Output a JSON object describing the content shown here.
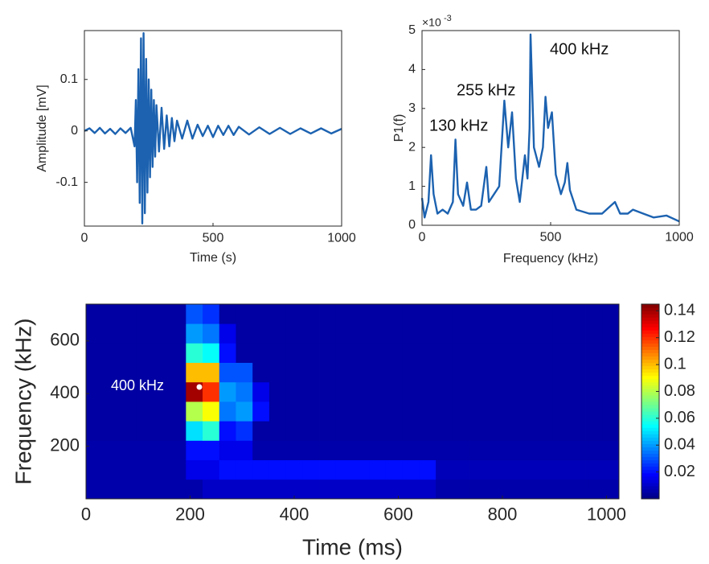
{
  "chart_data": [
    {
      "type": "line",
      "x_label": "Time (s)",
      "y_label": "Amplitude [mV]",
      "xlim": [
        0,
        1000
      ],
      "ylim": [
        -0.185,
        0.195
      ],
      "xticks": [
        0,
        500,
        1000
      ],
      "yticks": [
        -0.1,
        0,
        0.1
      ],
      "series": [
        {
          "color": "#1c62b0",
          "x": [
            0,
            20,
            40,
            60,
            80,
            100,
            120,
            140,
            160,
            180,
            195,
            200,
            205,
            210,
            215,
            220,
            225,
            230,
            235,
            240,
            245,
            250,
            255,
            260,
            265,
            270,
            275,
            280,
            290,
            300,
            310,
            320,
            330,
            340,
            350,
            360,
            380,
            400,
            420,
            440,
            460,
            480,
            500,
            520,
            540,
            560,
            580,
            600,
            640,
            680,
            720,
            760,
            800,
            840,
            880,
            920,
            960,
            1000
          ],
          "values": [
            0,
            0.005,
            -0.004,
            0.006,
            -0.005,
            0.004,
            -0.006,
            0.005,
            -0.004,
            0.006,
            -0.03,
            0.06,
            -0.1,
            0.12,
            -0.14,
            0.18,
            -0.18,
            0.19,
            -0.16,
            0.14,
            -0.12,
            0.1,
            -0.09,
            0.08,
            -0.07,
            0.06,
            -0.05,
            0.05,
            -0.04,
            0.045,
            -0.035,
            0.03,
            -0.03,
            0.025,
            -0.02,
            0.02,
            -0.015,
            0.02,
            -0.015,
            0.012,
            -0.01,
            0.01,
            -0.012,
            0.01,
            -0.008,
            0.01,
            -0.008,
            0.008,
            -0.007,
            0.007,
            -0.006,
            0.006,
            -0.006,
            0.005,
            -0.005,
            0.005,
            -0.005,
            0.004
          ]
        }
      ]
    },
    {
      "type": "line",
      "x_label": "Frequency (kHz)",
      "y_label": "P1(f)",
      "y_multiplier": {
        "base": "×10",
        "power": "-3"
      },
      "xlim": [
        0,
        1000
      ],
      "ylim": [
        0,
        5
      ],
      "xticks": [
        0,
        500,
        1000
      ],
      "yticks": [
        0,
        1,
        2,
        3,
        4,
        5
      ],
      "annotations": [
        "130 kHz",
        "255 kHz",
        "400 kHz"
      ],
      "series": [
        {
          "color": "#1c62b0",
          "x": [
            0,
            10,
            25,
            35,
            45,
            60,
            80,
            100,
            120,
            130,
            140,
            160,
            175,
            190,
            210,
            230,
            250,
            260,
            280,
            300,
            320,
            335,
            350,
            365,
            380,
            400,
            410,
            418,
            422,
            435,
            455,
            470,
            480,
            490,
            505,
            520,
            540,
            555,
            565,
            575,
            600,
            650,
            700,
            750,
            770,
            800,
            820,
            860,
            900,
            950,
            1000
          ],
          "values": [
            0.7,
            0.2,
            0.6,
            1.8,
            0.8,
            0.3,
            0.4,
            0.3,
            0.6,
            2.2,
            0.8,
            0.5,
            1.1,
            0.4,
            0.4,
            0.5,
            1.5,
            0.6,
            0.8,
            1.0,
            3.2,
            2.0,
            2.9,
            1.2,
            0.6,
            1.8,
            1.2,
            2.5,
            4.9,
            2.0,
            1.5,
            2.0,
            3.3,
            2.5,
            2.9,
            1.3,
            0.8,
            1.1,
            1.6,
            0.9,
            0.4,
            0.3,
            0.3,
            0.6,
            0.3,
            0.3,
            0.4,
            0.3,
            0.2,
            0.25,
            0.1
          ]
        }
      ]
    },
    {
      "type": "heatmap",
      "x_label": "Time (ms)",
      "y_label": "Frequency (kHz)",
      "colormap": "jet",
      "xlim": [
        0,
        1024
      ],
      "ylim": [
        0,
        740
      ],
      "xticks": [
        0,
        200,
        400,
        600,
        800,
        1000
      ],
      "yticks": [
        200,
        400,
        600
      ],
      "clim": [
        0,
        0.145
      ],
      "cticks": [
        0.02,
        0.04,
        0.06,
        0.08,
        0.1,
        0.12,
        0.14
      ],
      "annotations": [
        "400 kHz"
      ],
      "x_edges": [
        0,
        32,
        64,
        96,
        128,
        160,
        192,
        224,
        256,
        288,
        320,
        352,
        384,
        416,
        448,
        480,
        512,
        544,
        576,
        608,
        640,
        672,
        704,
        736,
        768,
        800,
        832,
        864,
        896,
        928,
        960,
        992,
        1024
      ],
      "y_edges": [
        0,
        74,
        148,
        222,
        296,
        370,
        444,
        518,
        592,
        666,
        740
      ],
      "values": [
        [
          0.006,
          0.006,
          0.006,
          0.006,
          0.006,
          0.006,
          0.006,
          0.01,
          0.01,
          0.01,
          0.01,
          0.01,
          0.01,
          0.01,
          0.01,
          0.01,
          0.01,
          0.01,
          0.01,
          0.01,
          0.01,
          0.006,
          0.006,
          0.006,
          0.006,
          0.006,
          0.006,
          0.006,
          0.006,
          0.006,
          0.006,
          0.006
        ],
        [
          0.006,
          0.006,
          0.006,
          0.006,
          0.006,
          0.006,
          0.015,
          0.015,
          0.02,
          0.02,
          0.02,
          0.02,
          0.02,
          0.02,
          0.02,
          0.02,
          0.02,
          0.02,
          0.02,
          0.02,
          0.02,
          0.008,
          0.008,
          0.008,
          0.008,
          0.008,
          0.008,
          0.008,
          0.008,
          0.008,
          0.008,
          0.008
        ],
        [
          0.006,
          0.006,
          0.006,
          0.006,
          0.006,
          0.006,
          0.02,
          0.02,
          0.015,
          0.015,
          0.006,
          0.006,
          0.006,
          0.006,
          0.006,
          0.006,
          0.006,
          0.006,
          0.006,
          0.006,
          0.006,
          0.006,
          0.006,
          0.006,
          0.006,
          0.006,
          0.006,
          0.006,
          0.006,
          0.006,
          0.006,
          0.006
        ],
        [
          0.005,
          0.005,
          0.005,
          0.005,
          0.005,
          0.005,
          0.05,
          0.06,
          0.02,
          0.025,
          0.005,
          0.005,
          0.005,
          0.005,
          0.005,
          0.005,
          0.005,
          0.005,
          0.005,
          0.005,
          0.005,
          0.005,
          0.005,
          0.005,
          0.005,
          0.005,
          0.005,
          0.005,
          0.005,
          0.005,
          0.005,
          0.005
        ],
        [
          0.005,
          0.005,
          0.005,
          0.005,
          0.005,
          0.005,
          0.08,
          0.09,
          0.035,
          0.04,
          0.02,
          0.005,
          0.005,
          0.005,
          0.005,
          0.005,
          0.005,
          0.005,
          0.005,
          0.005,
          0.005,
          0.005,
          0.005,
          0.005,
          0.005,
          0.005,
          0.005,
          0.005,
          0.005,
          0.005,
          0.005,
          0.005
        ],
        [
          0.005,
          0.005,
          0.005,
          0.005,
          0.005,
          0.005,
          0.14,
          0.12,
          0.04,
          0.035,
          0.015,
          0.005,
          0.005,
          0.005,
          0.005,
          0.005,
          0.005,
          0.005,
          0.005,
          0.005,
          0.005,
          0.005,
          0.005,
          0.005,
          0.005,
          0.005,
          0.005,
          0.005,
          0.005,
          0.005,
          0.005,
          0.005
        ],
        [
          0.005,
          0.005,
          0.005,
          0.005,
          0.005,
          0.005,
          0.1,
          0.1,
          0.03,
          0.03,
          0.005,
          0.005,
          0.005,
          0.005,
          0.005,
          0.005,
          0.005,
          0.005,
          0.005,
          0.005,
          0.005,
          0.005,
          0.005,
          0.005,
          0.005,
          0.005,
          0.005,
          0.005,
          0.005,
          0.005,
          0.005,
          0.005
        ],
        [
          0.005,
          0.005,
          0.005,
          0.005,
          0.005,
          0.005,
          0.06,
          0.055,
          0.02,
          0.005,
          0.005,
          0.005,
          0.005,
          0.005,
          0.005,
          0.005,
          0.005,
          0.005,
          0.005,
          0.005,
          0.005,
          0.005,
          0.005,
          0.005,
          0.005,
          0.005,
          0.005,
          0.005,
          0.005,
          0.005,
          0.005,
          0.005
        ],
        [
          0.005,
          0.005,
          0.005,
          0.005,
          0.005,
          0.005,
          0.04,
          0.035,
          0.015,
          0.005,
          0.005,
          0.005,
          0.005,
          0.005,
          0.005,
          0.005,
          0.005,
          0.005,
          0.005,
          0.005,
          0.005,
          0.005,
          0.005,
          0.005,
          0.005,
          0.005,
          0.005,
          0.005,
          0.005,
          0.005,
          0.005,
          0.005
        ],
        [
          0.005,
          0.005,
          0.005,
          0.005,
          0.005,
          0.005,
          0.03,
          0.025,
          0.005,
          0.005,
          0.005,
          0.005,
          0.005,
          0.005,
          0.005,
          0.005,
          0.005,
          0.005,
          0.005,
          0.005,
          0.005,
          0.005,
          0.005,
          0.005,
          0.005,
          0.005,
          0.005,
          0.005,
          0.005,
          0.005,
          0.005,
          0.005
        ]
      ]
    }
  ]
}
